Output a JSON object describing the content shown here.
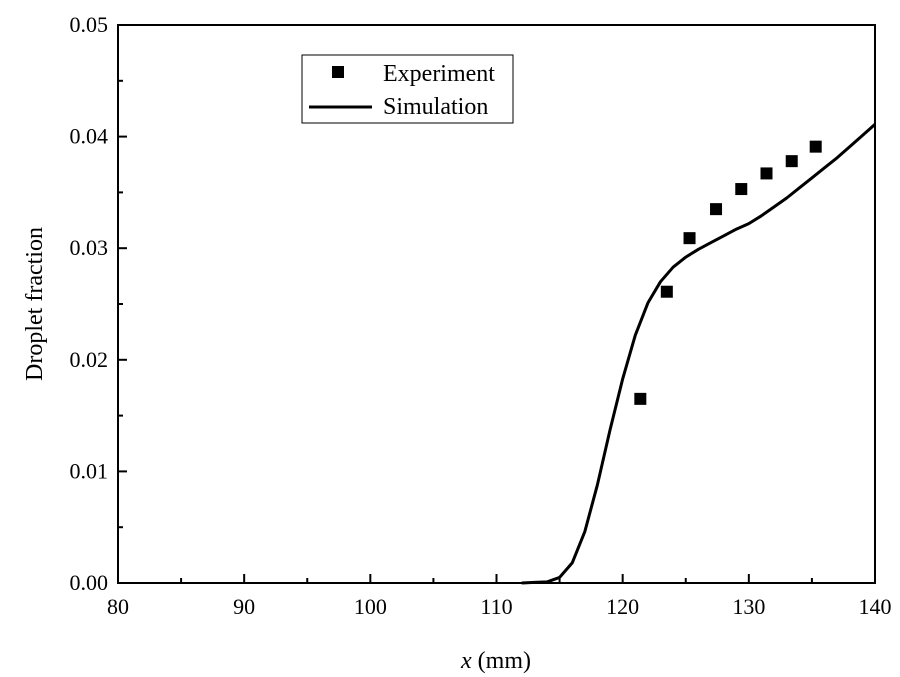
{
  "chart_data": {
    "type": "line",
    "xlabel": {
      "var": "x",
      "unit": " (mm)"
    },
    "ylabel": "Droplet fraction",
    "xlim": [
      80,
      140
    ],
    "ylim": [
      0,
      0.05
    ],
    "x_ticks": [
      80,
      90,
      100,
      110,
      120,
      130,
      140
    ],
    "x_tick_labels": [
      "80",
      "90",
      "100",
      "110",
      "120",
      "130",
      "140"
    ],
    "y_ticks": [
      0.0,
      0.01,
      0.02,
      0.03,
      0.04,
      0.05
    ],
    "y_tick_labels": [
      "0.00",
      "0.01",
      "0.02",
      "0.03",
      "0.04",
      "0.05"
    ],
    "grid": false,
    "legend_position": "top-left",
    "series": [
      {
        "name": "Experiment",
        "kind": "scatter",
        "marker": "square",
        "color": "#000000",
        "x": [
          121.4,
          123.5,
          125.3,
          127.4,
          129.4,
          131.4,
          133.4,
          135.3
        ],
        "y": [
          0.0165,
          0.0261,
          0.0309,
          0.0335,
          0.0353,
          0.0367,
          0.0378,
          0.0391
        ]
      },
      {
        "name": "Simulation",
        "kind": "line",
        "color": "#000000",
        "x": [
          112,
          113,
          114,
          115,
          116,
          117,
          118,
          119,
          120,
          121,
          122,
          123,
          124,
          125,
          126,
          127,
          128,
          129,
          130,
          131,
          132,
          133,
          134,
          135,
          136,
          137,
          138,
          139,
          140
        ],
        "y": [
          0.0,
          5e-05,
          0.0001,
          0.0005,
          0.0018,
          0.0046,
          0.0088,
          0.0137,
          0.0183,
          0.0222,
          0.0251,
          0.027,
          0.0283,
          0.0292,
          0.0299,
          0.0305,
          0.0311,
          0.0317,
          0.0322,
          0.0329,
          0.0337,
          0.0345,
          0.0354,
          0.0363,
          0.0372,
          0.0381,
          0.0391,
          0.0401,
          0.0411
        ]
      }
    ]
  }
}
